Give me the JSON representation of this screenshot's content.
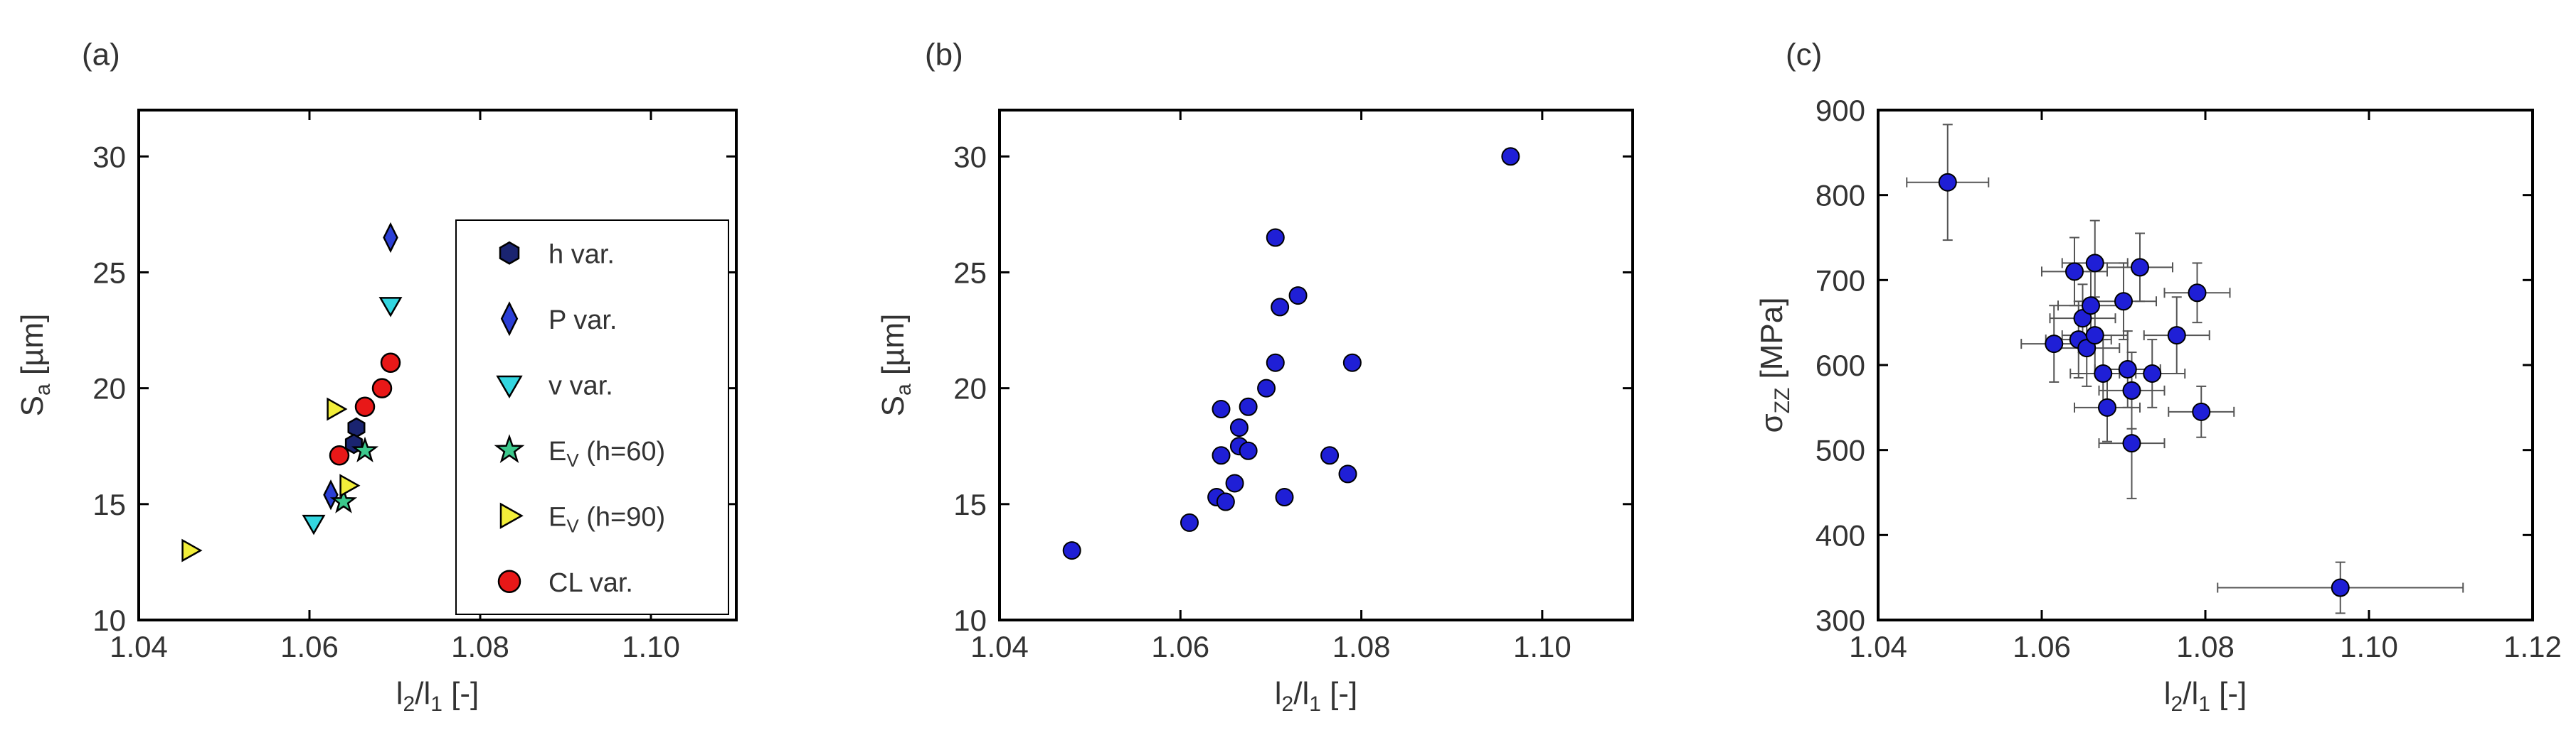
{
  "chart_data": [
    {
      "type": "scatter",
      "panel_label": "(a)",
      "xlabel": {
        "main": "l",
        "sub1": "2",
        "mid": "/l",
        "sub2": "1",
        "tail": " [-]"
      },
      "ylabel": {
        "main": "S",
        "sub": "a",
        "tail": " [µm]"
      },
      "xlim": [
        1.04,
        1.11
      ],
      "ylim": [
        10,
        32
      ],
      "xticks": [
        "1.04",
        "1.06",
        "1.08",
        "1.10"
      ],
      "xtick_values": [
        1.04,
        1.06,
        1.08,
        1.1
      ],
      "yticks": [
        "10",
        "15",
        "20",
        "25",
        "30"
      ],
      "ytick_values": [
        10,
        15,
        20,
        25,
        30
      ],
      "legend_position": "right",
      "series": [
        {
          "name": "h var.",
          "label_main": "h var.",
          "label_sub": "",
          "label_tail": "",
          "marker": "hexagon",
          "color": "#1a2470",
          "points": [
            [
              1.0655,
              18.3
            ],
            [
              1.0652,
              17.6
            ]
          ]
        },
        {
          "name": "P var.",
          "label_main": "P var.",
          "label_sub": "",
          "label_tail": "",
          "marker": "diamond",
          "color": "#2b3fd6",
          "points": [
            [
              1.0695,
              26.5
            ],
            [
              1.0625,
              15.4
            ]
          ]
        },
        {
          "name": "v var.",
          "label_main": "v var.",
          "label_sub": "",
          "label_tail": "",
          "marker": "triangle-down",
          "color": "#33d6e0",
          "points": [
            [
              1.0695,
              23.6
            ],
            [
              1.0605,
              14.2
            ]
          ]
        },
        {
          "name": "E_V (h=60)",
          "label_main": "E",
          "label_sub": "V",
          "label_tail": " (h=60)",
          "marker": "star",
          "color": "#3cc88c",
          "points": [
            [
              1.0665,
              17.3
            ],
            [
              1.064,
              15.1
            ]
          ]
        },
        {
          "name": "E_V (h=90)",
          "label_main": "E",
          "label_sub": "V",
          "label_tail": " (h=90)",
          "marker": "triangle-right",
          "color": "#f2ee3a",
          "points": [
            [
              1.046,
              13.0
            ],
            [
              1.063,
              19.1
            ],
            [
              1.0645,
              15.8
            ]
          ]
        },
        {
          "name": "CL var.",
          "label_main": "CL var.",
          "label_sub": "",
          "label_tail": "",
          "marker": "circle",
          "color": "#e81818",
          "points": [
            [
              1.0635,
              17.1
            ],
            [
              1.0665,
              19.2
            ],
            [
              1.0685,
              20.0
            ],
            [
              1.0695,
              21.1
            ]
          ]
        }
      ]
    },
    {
      "type": "scatter",
      "panel_label": "(b)",
      "xlabel": {
        "main": "l",
        "sub1": "2",
        "mid": "/l",
        "sub2": "1",
        "tail": " [-]"
      },
      "ylabel": {
        "main": "S",
        "sub": "a",
        "tail": " [µm]"
      },
      "xlim": [
        1.04,
        1.11
      ],
      "ylim": [
        10,
        32
      ],
      "xticks": [
        "1.04",
        "1.06",
        "1.08",
        "1.10"
      ],
      "xtick_values": [
        1.04,
        1.06,
        1.08,
        1.1
      ],
      "yticks": [
        "10",
        "15",
        "20",
        "25",
        "30"
      ],
      "ytick_values": [
        10,
        15,
        20,
        25,
        30
      ],
      "color": "#1f1fd6",
      "points": [
        [
          1.048,
          13.0
        ],
        [
          1.061,
          14.2
        ],
        [
          1.064,
          15.3
        ],
        [
          1.065,
          15.1
        ],
        [
          1.066,
          15.9
        ],
        [
          1.0645,
          17.1
        ],
        [
          1.0645,
          19.1
        ],
        [
          1.0665,
          18.3
        ],
        [
          1.0665,
          17.5
        ],
        [
          1.0675,
          17.3
        ],
        [
          1.0675,
          19.2
        ],
        [
          1.0695,
          20.0
        ],
        [
          1.0705,
          21.1
        ],
        [
          1.0705,
          26.5
        ],
        [
          1.071,
          23.5
        ],
        [
          1.0715,
          15.3
        ],
        [
          1.073,
          24.0
        ],
        [
          1.0765,
          17.1
        ],
        [
          1.0785,
          16.3
        ],
        [
          1.079,
          21.1
        ],
        [
          1.0965,
          30.0
        ]
      ]
    },
    {
      "type": "scatter",
      "panel_label": "(c)",
      "xlabel": {
        "main": "l",
        "sub1": "2",
        "mid": "/l",
        "sub2": "1",
        "tail": " [-]"
      },
      "ylabel": {
        "main": "σ",
        "sub": "ZZ",
        "tail": " [MPa]"
      },
      "xlim": [
        1.04,
        1.12
      ],
      "ylim": [
        300,
        900
      ],
      "xticks": [
        "1.04",
        "1.06",
        "1.08",
        "1.10",
        "1.12"
      ],
      "xtick_values": [
        1.04,
        1.06,
        1.08,
        1.1,
        1.12
      ],
      "yticks": [
        "300",
        "400",
        "500",
        "600",
        "700",
        "800",
        "900"
      ],
      "ytick_values": [
        300,
        400,
        500,
        600,
        700,
        800,
        900
      ],
      "error_bars": true,
      "color": "#1f1fd6",
      "points": [
        {
          "x": 1.0485,
          "y": 815,
          "xerr": 0.005,
          "yerr": 68
        },
        {
          "x": 1.0615,
          "y": 625,
          "xerr": 0.004,
          "yerr": 45
        },
        {
          "x": 1.064,
          "y": 710,
          "xerr": 0.004,
          "yerr": 40
        },
        {
          "x": 1.0645,
          "y": 630,
          "xerr": 0.004,
          "yerr": 45
        },
        {
          "x": 1.065,
          "y": 655,
          "xerr": 0.004,
          "yerr": 40
        },
        {
          "x": 1.0655,
          "y": 620,
          "xerr": 0.004,
          "yerr": 45
        },
        {
          "x": 1.066,
          "y": 670,
          "xerr": 0.004,
          "yerr": 40
        },
        {
          "x": 1.0665,
          "y": 720,
          "xerr": 0.004,
          "yerr": 50
        },
        {
          "x": 1.0665,
          "y": 635,
          "xerr": 0.004,
          "yerr": 45
        },
        {
          "x": 1.0675,
          "y": 590,
          "xerr": 0.004,
          "yerr": 40
        },
        {
          "x": 1.068,
          "y": 550,
          "xerr": 0.004,
          "yerr": 40
        },
        {
          "x": 1.07,
          "y": 675,
          "xerr": 0.004,
          "yerr": 45
        },
        {
          "x": 1.0705,
          "y": 595,
          "xerr": 0.004,
          "yerr": 45
        },
        {
          "x": 1.071,
          "y": 570,
          "xerr": 0.004,
          "yerr": 45
        },
        {
          "x": 1.071,
          "y": 508,
          "xerr": 0.004,
          "yerr": 65
        },
        {
          "x": 1.072,
          "y": 715,
          "xerr": 0.004,
          "yerr": 40
        },
        {
          "x": 1.0735,
          "y": 590,
          "xerr": 0.004,
          "yerr": 40
        },
        {
          "x": 1.0765,
          "y": 635,
          "xerr": 0.004,
          "yerr": 45
        },
        {
          "x": 1.079,
          "y": 685,
          "xerr": 0.004,
          "yerr": 35
        },
        {
          "x": 1.0795,
          "y": 545,
          "xerr": 0.004,
          "yerr": 30
        },
        {
          "x": 1.0965,
          "y": 338,
          "xerr": 0.015,
          "yerr": 30
        }
      ]
    }
  ]
}
